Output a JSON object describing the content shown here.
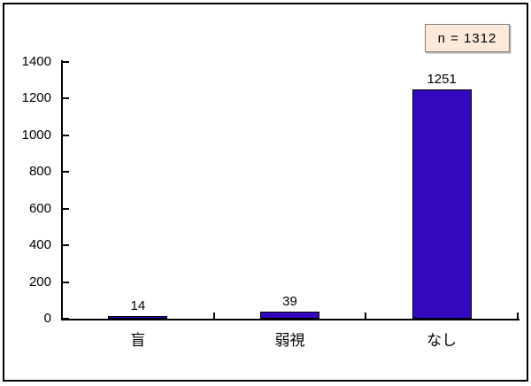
{
  "annotation": {
    "label": "n = 1312",
    "bg_color": "#FCE9DA",
    "border_color": "#7F7F7F"
  },
  "chart_data": {
    "type": "bar",
    "categories": [
      "盲",
      "弱視",
      "なし"
    ],
    "values": [
      14,
      39,
      1251
    ],
    "value_labels": [
      "14",
      "39",
      "1251"
    ],
    "yticks": [
      0,
      200,
      400,
      600,
      800,
      1000,
      1200,
      1400
    ],
    "ytick_labels": [
      "0",
      "200",
      "400",
      "600",
      "800",
      "1000",
      "1200",
      "1400"
    ],
    "ylim": [
      0,
      1400
    ],
    "title": "",
    "xlabel": "",
    "ylabel": "",
    "grid": false,
    "annotation": "n = 1312",
    "annotation_position": "top-right",
    "bar_color": "#3408BE",
    "bar_border_color": "#000000",
    "axis_color": "#000000",
    "frame_color": "#000000"
  }
}
